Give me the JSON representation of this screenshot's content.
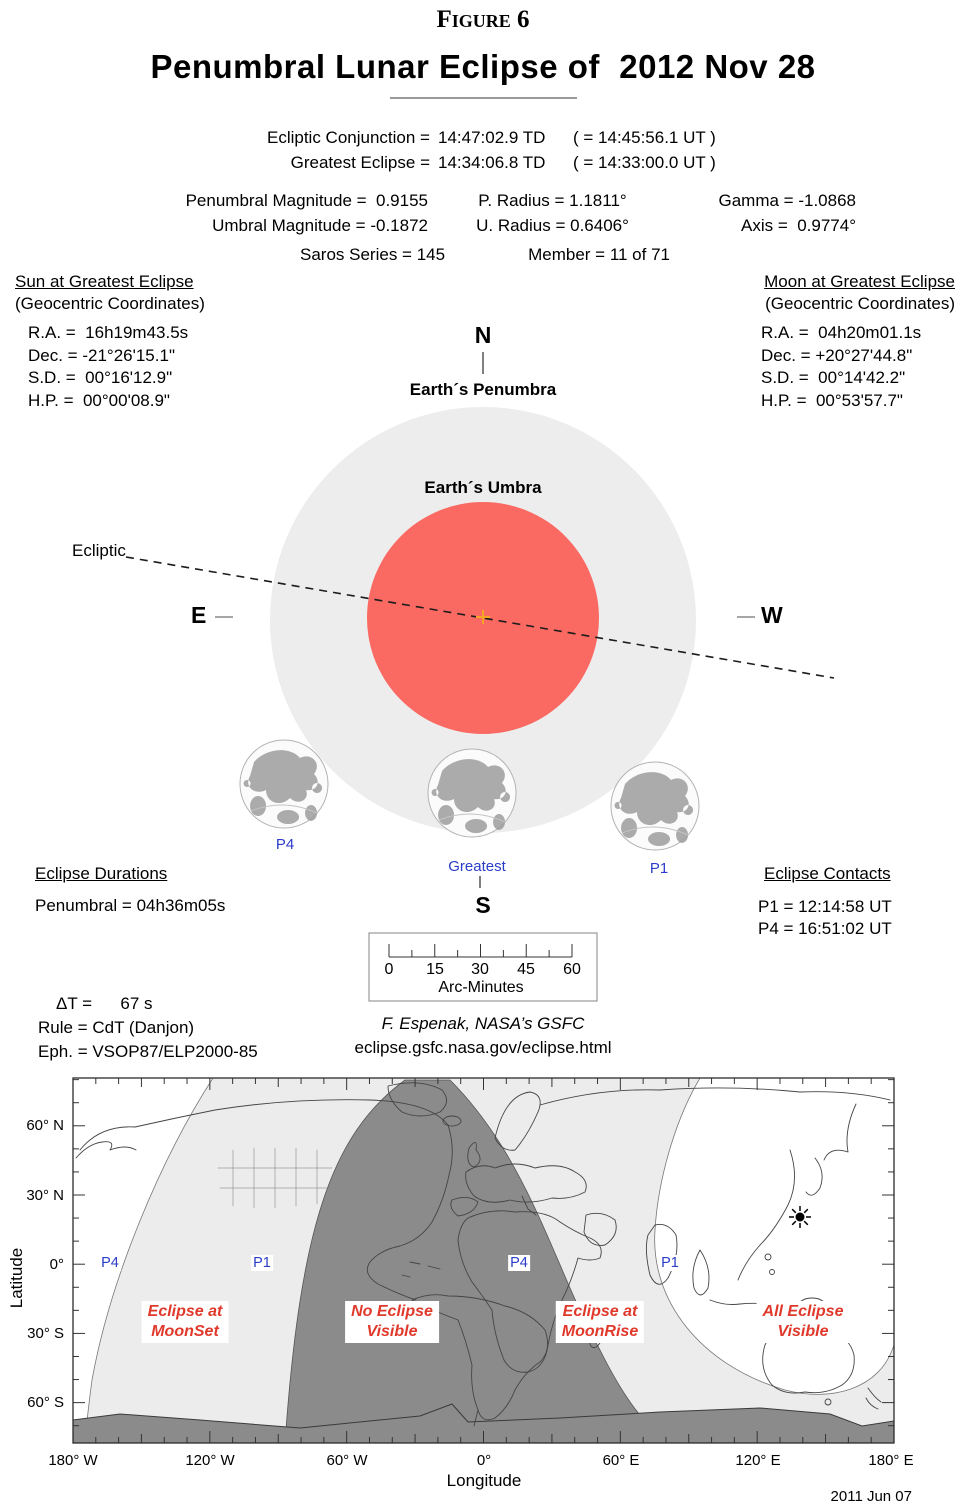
{
  "header": {
    "figure_label": "Figure 6",
    "title": "Penumbral Lunar Eclipse of  2012 Nov 28"
  },
  "conjunction": {
    "rows": [
      {
        "label": "Ecliptic Conjunction =",
        "td": "14:47:02.9 TD",
        "ut": "( = 14:45:56.1 UT )"
      },
      {
        "label": "Greatest Eclipse =",
        "td": "14:34:06.8 TD",
        "ut": "( = 14:33:00.0 UT )"
      }
    ]
  },
  "magnitudes": {
    "rows": [
      {
        "c1": "Penumbral Magnitude =  0.9155",
        "c2": "P. Radius = 1.1811°",
        "c3": "Gamma = -1.0868"
      },
      {
        "c1": "Umbral Magnitude = -0.1872",
        "c2": "U. Radius = 0.6406°",
        "c3": "Axis =  0.9774°"
      }
    ]
  },
  "saros": {
    "series": "Saros Series = 145",
    "member": "Member = 11 of 71"
  },
  "sun_block": {
    "title": "Sun at Greatest Eclipse",
    "subtitle": "(Geocentric Coordinates)",
    "lines": [
      "R.A. =  16h19m43.5s",
      "Dec. = -21°26'15.1\"",
      "S.D. =  00°16'12.9\"",
      "H.P. =  00°00'08.9\""
    ]
  },
  "moon_block": {
    "title": "Moon at Greatest Eclipse",
    "subtitle": "(Geocentric Coordinates)",
    "lines": [
      "R.A. =  04h20m01.1s",
      "Dec. = +20°27'44.8\"",
      "S.D. =  00°14'42.2\"",
      "H.P. =  00°53'57.7\""
    ]
  },
  "diagram": {
    "north_label": "N",
    "south_label": "S",
    "east_label": "E",
    "west_label": "W",
    "penumbra_label": "Earth´s Penumbra",
    "umbra_label": "Earth´s Umbra",
    "ecliptic_label": "Ecliptic",
    "p4_label": "P4",
    "greatest_label": "Greatest",
    "p1_label": "P1",
    "colors": {
      "penumbra": "#ededed",
      "umbra": "#fa6a62",
      "cross": "#f7a427",
      "contact_blue": "#2b3cc9"
    }
  },
  "durations": {
    "title": "Eclipse Durations",
    "line1": "Penumbral = 04h36m05s"
  },
  "contacts": {
    "title": "Eclipse Contacts",
    "line1": "P1 = 12:14:58 UT",
    "line2": "P4 = 16:51:02 UT"
  },
  "scale_bar": {
    "ticks": [
      "0",
      "15",
      "30",
      "45",
      "60"
    ],
    "label": "Arc-Minutes"
  },
  "footnotes": {
    "delta_t": "ΔT =      67 s",
    "rule": "Rule = CdT (Danjon)",
    "ephemeris": "Eph. = VSOP87/ELP2000-85",
    "credit": "F. Espenak, NASA’s GSFC",
    "url": "eclipse.gsfc.nasa.gov/eclipse.html"
  },
  "map": {
    "ylabel": "Latitude",
    "xlabel": "Longitude",
    "lat_ticks": [
      "60° N",
      "30° N",
      "0°",
      "30° S",
      "60° S"
    ],
    "lon_ticks": [
      "180° W",
      "120° W",
      "60° W",
      "0°",
      "60° E",
      "120° E",
      "180° E"
    ],
    "contact_labels": [
      "P4",
      "P1",
      "P4",
      "P1"
    ],
    "region_labels": [
      {
        "line1": "Eclipse at",
        "line2": "MoonSet"
      },
      {
        "line1": "No Eclipse",
        "line2": "Visible"
      },
      {
        "line1": "Eclipse at",
        "line2": "MoonRise"
      },
      {
        "line1": "All Eclipse",
        "line2": "Visible"
      }
    ],
    "colors": {
      "dark": "#8b8b8b",
      "light": "#ececec",
      "label_red": "#e0392b",
      "label_blue": "#2b3cc9"
    }
  },
  "date_stamp": "2011 Jun 07"
}
